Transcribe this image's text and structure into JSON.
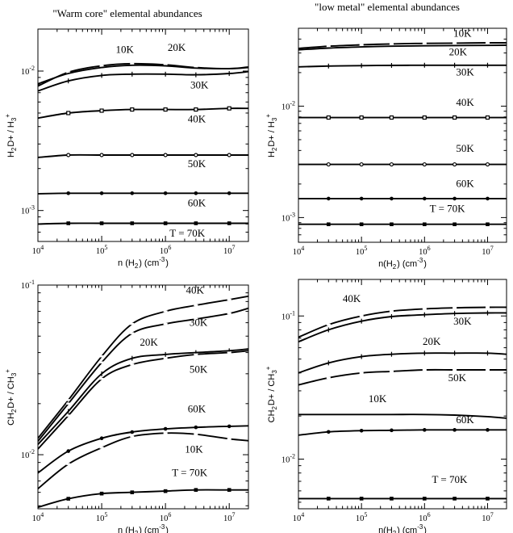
{
  "column_titles": {
    "left": "\"Warm core\" elemental abundances",
    "right": "\"low metal\" elemental abundances"
  },
  "axis_text": {
    "xlabel_left": "n (H2) (cm-3)",
    "xlabel_right": "n(H2) (cm-3)",
    "ylabel_top": "H2D+ / H3+",
    "ylabel_bottom": "CH2D+ / CH3+"
  },
  "chart_data": [
    {
      "id": "top-left",
      "type": "line",
      "title": "\"Warm core\" elemental abundances",
      "xlabel": "n (H2) (cm-3)",
      "ylabel": "H2D+ / H3+",
      "xscale": "log",
      "yscale": "log",
      "xlim": [
        10000,
        20000000
      ],
      "ylim": [
        0.0006,
        0.02
      ],
      "xticks": [
        "10^4",
        "10^5",
        "10^6",
        "10^7"
      ],
      "yticks": [
        "10^-3",
        "10^-2"
      ],
      "grid": false,
      "series": [
        {
          "name": "10K",
          "marker": "dash",
          "x": [
            10000,
            30000,
            100000,
            300000,
            1000000,
            3000000,
            10000000,
            20000000
          ],
          "y": [
            0.0078,
            0.0098,
            0.0109,
            0.0113,
            0.0111,
            0.0106,
            0.0104,
            0.0107
          ]
        },
        {
          "name": "20K",
          "marker": "none",
          "x": [
            10000,
            30000,
            100000,
            300000,
            1000000,
            3000000,
            10000000,
            20000000
          ],
          "y": [
            0.0081,
            0.0096,
            0.0106,
            0.011,
            0.0109,
            0.0105,
            0.0104,
            0.0106
          ]
        },
        {
          "name": "30K",
          "marker": "plus",
          "x": [
            10000,
            30000,
            100000,
            300000,
            1000000,
            3000000,
            10000000,
            20000000
          ],
          "y": [
            0.0072,
            0.0085,
            0.0093,
            0.0095,
            0.0095,
            0.0094,
            0.0096,
            0.0099
          ]
        },
        {
          "name": "40K",
          "marker": "open-square",
          "x": [
            10000,
            30000,
            100000,
            300000,
            1000000,
            3000000,
            10000000,
            20000000
          ],
          "y": [
            0.0046,
            0.005,
            0.0052,
            0.0053,
            0.0053,
            0.0053,
            0.0054,
            0.0054
          ]
        },
        {
          "name": "50K",
          "marker": "open-circle",
          "x": [
            10000,
            30000,
            100000,
            300000,
            1000000,
            3000000,
            10000000,
            20000000
          ],
          "y": [
            0.0024,
            0.0025,
            0.0025,
            0.0025,
            0.0025,
            0.0025,
            0.0025,
            0.0025
          ]
        },
        {
          "name": "60K",
          "marker": "filled-circle",
          "x": [
            10000,
            30000,
            100000,
            300000,
            1000000,
            3000000,
            10000000,
            20000000
          ],
          "y": [
            0.00132,
            0.00133,
            0.00133,
            0.00133,
            0.00133,
            0.00133,
            0.00133,
            0.00133
          ]
        },
        {
          "name": "T = 70K",
          "marker": "filled-square",
          "x": [
            10000,
            30000,
            100000,
            300000,
            1000000,
            3000000,
            10000000,
            20000000
          ],
          "y": [
            0.0008,
            0.00081,
            0.00081,
            0.00081,
            0.00081,
            0.00081,
            0.00081,
            0.00081
          ]
        }
      ],
      "annotations": [
        {
          "text": "10K",
          "x": 230000,
          "y": 0.0135
        },
        {
          "text": "20K",
          "x": 1500000,
          "y": 0.014
        },
        {
          "text": "30K",
          "x": 3400000,
          "y": 0.0075
        },
        {
          "text": "40K",
          "x": 3100000,
          "y": 0.0043
        },
        {
          "text": "50K",
          "x": 3100000,
          "y": 0.00205
        },
        {
          "text": "60K",
          "x": 3100000,
          "y": 0.00107
        },
        {
          "text": "T = 70K",
          "x": 2200000,
          "y": 0.00065
        }
      ]
    },
    {
      "id": "top-right",
      "type": "line",
      "title": "\"low metal\" elemental abundances",
      "xlabel": "n(H2) (cm-3)",
      "ylabel": "H2D+ / H3+",
      "xscale": "log",
      "yscale": "log",
      "xlim": [
        10000,
        20000000
      ],
      "ylim": [
        0.0006,
        0.05
      ],
      "xticks": [
        "10^4",
        "10^5",
        "10^6",
        "10^7"
      ],
      "yticks": [
        "10^-3",
        "10^-2"
      ],
      "grid": false,
      "series": [
        {
          "name": "10K",
          "marker": "dash",
          "x": [
            10000,
            30000,
            100000,
            300000,
            1000000,
            3000000,
            10000000,
            20000000
          ],
          "y": [
            0.033,
            0.0345,
            0.0355,
            0.0362,
            0.0366,
            0.0368,
            0.037,
            0.037
          ]
        },
        {
          "name": "20K",
          "marker": "none",
          "x": [
            10000,
            30000,
            100000,
            300000,
            1000000,
            3000000,
            10000000,
            20000000
          ],
          "y": [
            0.032,
            0.0332,
            0.034,
            0.0345,
            0.0348,
            0.035,
            0.0351,
            0.0352
          ]
        },
        {
          "name": "30K",
          "marker": "plus",
          "x": [
            10000,
            30000,
            100000,
            300000,
            1000000,
            3000000,
            10000000,
            20000000
          ],
          "y": [
            0.0225,
            0.0229,
            0.0231,
            0.0232,
            0.0233,
            0.0233,
            0.0233,
            0.0233
          ]
        },
        {
          "name": "40K",
          "marker": "open-square",
          "x": [
            10000,
            30000,
            100000,
            300000,
            1000000,
            3000000,
            10000000,
            20000000
          ],
          "y": [
            0.0079,
            0.0079,
            0.0079,
            0.0079,
            0.0079,
            0.0079,
            0.0079,
            0.0079
          ]
        },
        {
          "name": "50K",
          "marker": "open-circle",
          "x": [
            10000,
            30000,
            100000,
            300000,
            1000000,
            3000000,
            10000000,
            20000000
          ],
          "y": [
            0.003,
            0.003,
            0.003,
            0.003,
            0.003,
            0.003,
            0.003,
            0.003
          ]
        },
        {
          "name": "60K",
          "marker": "filled-circle",
          "x": [
            10000,
            30000,
            100000,
            300000,
            1000000,
            3000000,
            10000000,
            20000000
          ],
          "y": [
            0.00148,
            0.00148,
            0.00148,
            0.00148,
            0.00148,
            0.00148,
            0.00148,
            0.00148
          ]
        },
        {
          "name": "T = 70K",
          "marker": "filled-square",
          "x": [
            10000,
            30000,
            100000,
            300000,
            1000000,
            3000000,
            10000000,
            20000000
          ],
          "y": [
            0.00087,
            0.00087,
            0.00087,
            0.00087,
            0.00087,
            0.00087,
            0.00087,
            0.00087
          ]
        }
      ],
      "annotations": [
        {
          "text": "10K",
          "x": 4000000,
          "y": 0.042
        },
        {
          "text": "20K",
          "x": 3400000,
          "y": 0.0285
        },
        {
          "text": "30K",
          "x": 4400000,
          "y": 0.0188
        },
        {
          "text": "40K",
          "x": 4400000,
          "y": 0.0101
        },
        {
          "text": "50K",
          "x": 4400000,
          "y": 0.0039
        },
        {
          "text": "60K",
          "x": 4400000,
          "y": 0.00188
        },
        {
          "text": "T = 70K",
          "x": 2300000,
          "y": 0.00112
        }
      ]
    },
    {
      "id": "bottom-left",
      "type": "line",
      "xlabel": "n (H2) (cm-3)",
      "ylabel": "CH2D+ / CH3+",
      "xscale": "log",
      "yscale": "log",
      "xlim": [
        10000,
        20000000
      ],
      "ylim": [
        0.0048,
        0.1
      ],
      "xticks": [
        "10^4",
        "10^5",
        "10^6",
        "10^7"
      ],
      "yticks": [
        "10^-2",
        "10^-1"
      ],
      "grid": false,
      "series": [
        {
          "name": "40K",
          "marker": "dash",
          "x": [
            10000,
            30000,
            100000,
            300000,
            1000000,
            3000000,
            10000000,
            20000000
          ],
          "y": [
            0.0125,
            0.021,
            0.038,
            0.059,
            0.07,
            0.076,
            0.082,
            0.086
          ]
        },
        {
          "name": "30K",
          "marker": "dash",
          "x": [
            10000,
            30000,
            100000,
            300000,
            1000000,
            3000000,
            10000000,
            20000000
          ],
          "y": [
            0.012,
            0.02,
            0.035,
            0.052,
            0.059,
            0.063,
            0.068,
            0.073
          ]
        },
        {
          "name": "20K",
          "marker": "plus",
          "x": [
            10000,
            30000,
            100000,
            300000,
            1000000,
            3000000,
            10000000,
            20000000
          ],
          "y": [
            0.0115,
            0.018,
            0.03,
            0.037,
            0.039,
            0.04,
            0.041,
            0.042
          ]
        },
        {
          "name": "50K",
          "marker": "dash",
          "x": [
            10000,
            30000,
            100000,
            300000,
            1000000,
            3000000,
            10000000,
            20000000
          ],
          "y": [
            0.0108,
            0.017,
            0.028,
            0.034,
            0.037,
            0.039,
            0.04,
            0.041
          ]
        },
        {
          "name": "60K",
          "marker": "filled-circle",
          "x": [
            10000,
            30000,
            100000,
            300000,
            1000000,
            3000000,
            10000000,
            20000000
          ],
          "y": [
            0.0078,
            0.0105,
            0.0125,
            0.0136,
            0.0142,
            0.0145,
            0.0147,
            0.0148
          ]
        },
        {
          "name": "10K",
          "marker": "dash",
          "x": [
            10000,
            30000,
            100000,
            300000,
            1000000,
            3000000,
            10000000,
            20000000
          ],
          "y": [
            0.0063,
            0.0088,
            0.011,
            0.0128,
            0.0134,
            0.0132,
            0.0124,
            0.0121
          ]
        },
        {
          "name": "T = 70K",
          "marker": "filled-square",
          "x": [
            10000,
            30000,
            100000,
            300000,
            1000000,
            3000000,
            10000000,
            20000000
          ],
          "y": [
            0.0049,
            0.0055,
            0.0059,
            0.006,
            0.0061,
            0.0062,
            0.0062,
            0.0062
          ]
        }
      ],
      "annotations": [
        {
          "text": "40K",
          "x": 2900000,
          "y": 0.089
        },
        {
          "text": "30K",
          "x": 3300000,
          "y": 0.0575
        },
        {
          "text": "20K",
          "x": 550000,
          "y": 0.044
        },
        {
          "text": "50K",
          "x": 3300000,
          "y": 0.0305
        },
        {
          "text": "60K",
          "x": 3100000,
          "y": 0.0178
        },
        {
          "text": "10K",
          "x": 2800000,
          "y": 0.0103
        },
        {
          "text": "T = 70K",
          "x": 2400000,
          "y": 0.0075
        }
      ]
    },
    {
      "id": "bottom-right",
      "type": "line",
      "xlabel": "n(H2) (cm-3)",
      "ylabel": "CH2D+ / CH3+",
      "xscale": "log",
      "yscale": "log",
      "xlim": [
        10000,
        20000000
      ],
      "ylim": [
        0.0045,
        0.18
      ],
      "xticks": [
        "10^4",
        "10^5",
        "10^6",
        "10^7"
      ],
      "yticks": [
        "10^-2",
        "10^-1"
      ],
      "grid": false,
      "series": [
        {
          "name": "40K",
          "marker": "dash",
          "x": [
            10000,
            30000,
            100000,
            300000,
            1000000,
            3000000,
            10000000,
            20000000
          ],
          "y": [
            0.071,
            0.087,
            0.1,
            0.108,
            0.112,
            0.114,
            0.115,
            0.115
          ]
        },
        {
          "name": "30K",
          "marker": "plus",
          "x": [
            10000,
            30000,
            100000,
            300000,
            1000000,
            3000000,
            10000000,
            20000000
          ],
          "y": [
            0.066,
            0.08,
            0.092,
            0.099,
            0.102,
            0.104,
            0.105,
            0.105
          ]
        },
        {
          "name": "20K",
          "marker": "plus",
          "x": [
            10000,
            30000,
            100000,
            300000,
            1000000,
            3000000,
            10000000,
            20000000
          ],
          "y": [
            0.04,
            0.047,
            0.052,
            0.054,
            0.055,
            0.055,
            0.055,
            0.054
          ]
        },
        {
          "name": "50K",
          "marker": "dash",
          "x": [
            10000,
            30000,
            100000,
            300000,
            1000000,
            3000000,
            10000000,
            20000000
          ],
          "y": [
            0.033,
            0.037,
            0.04,
            0.041,
            0.042,
            0.042,
            0.042,
            0.042
          ]
        },
        {
          "name": "10K",
          "marker": "none",
          "x": [
            10000,
            30000,
            100000,
            300000,
            1000000,
            3000000,
            10000000,
            20000000
          ],
          "y": [
            0.0205,
            0.0205,
            0.0205,
            0.0205,
            0.0205,
            0.0203,
            0.0198,
            0.0193
          ]
        },
        {
          "name": "60K",
          "marker": "filled-circle",
          "x": [
            10000,
            30000,
            100000,
            300000,
            1000000,
            3000000,
            10000000,
            20000000
          ],
          "y": [
            0.0147,
            0.0155,
            0.0158,
            0.0159,
            0.016,
            0.016,
            0.016,
            0.016
          ]
        },
        {
          "name": "T = 70K",
          "marker": "filled-square",
          "x": [
            10000,
            30000,
            100000,
            300000,
            1000000,
            3000000,
            10000000,
            20000000
          ],
          "y": [
            0.0053,
            0.0053,
            0.0053,
            0.0053,
            0.0053,
            0.0053,
            0.0053,
            0.0053
          ]
        }
      ],
      "annotations": [
        {
          "text": "40K",
          "x": 70000,
          "y": 0.125
        },
        {
          "text": "30K",
          "x": 4000000,
          "y": 0.087
        },
        {
          "text": "20K",
          "x": 1300000,
          "y": 0.063
        },
        {
          "text": "50K",
          "x": 3300000,
          "y": 0.035
        },
        {
          "text": "10K",
          "x": 180000,
          "y": 0.025
        },
        {
          "text": "60K",
          "x": 4400000,
          "y": 0.0178
        },
        {
          "text": "T = 70K",
          "x": 2500000,
          "y": 0.0068
        }
      ]
    }
  ]
}
